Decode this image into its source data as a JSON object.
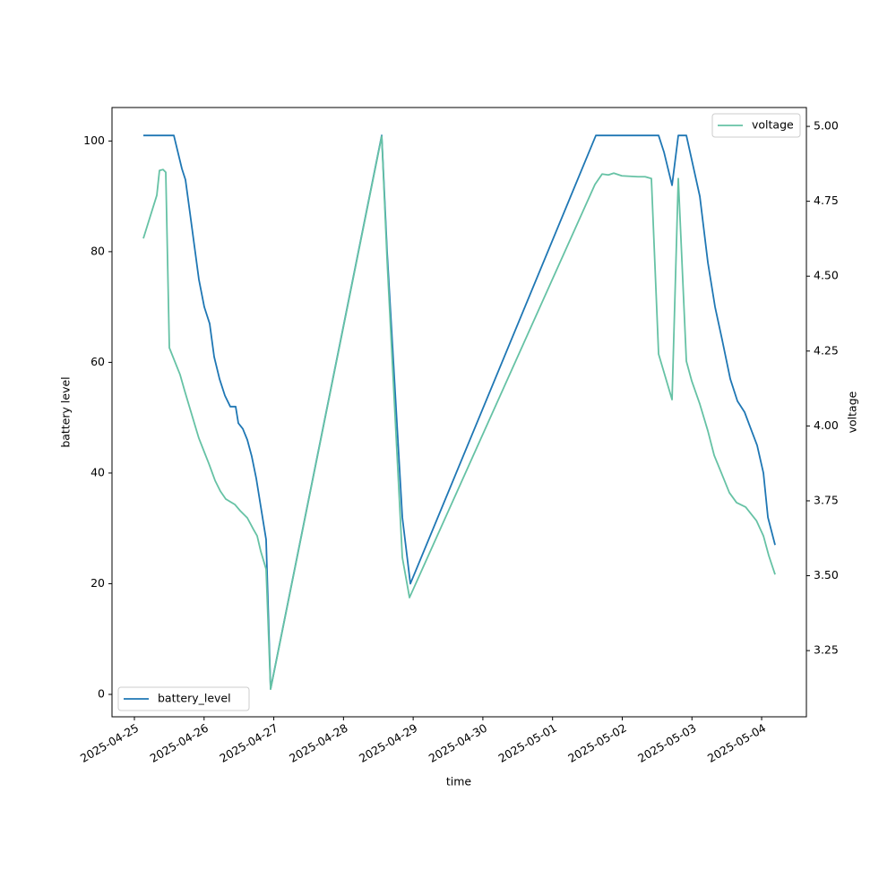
{
  "chart_data": {
    "type": "line",
    "xlabel": "time",
    "ylabel": "battery level",
    "y2label": "voltage",
    "xlim": [
      "2025-04-24 16:17",
      "2025-05-04 15:25"
    ],
    "xticks": [
      "2025-04-25",
      "2025-04-26",
      "2025-04-27",
      "2025-04-28",
      "2025-04-29",
      "2025-04-30",
      "2025-05-01",
      "2025-05-02",
      "2025-05-03",
      "2025-05-04"
    ],
    "ylim": [
      -4.05,
      106.05
    ],
    "yticks": [
      0,
      20,
      40,
      60,
      80,
      100
    ],
    "y2lim": [
      3.029,
      5.063
    ],
    "y2ticks": [
      {
        "value": 3.25,
        "label": "3.25"
      },
      {
        "value": 3.5,
        "label": "3.50"
      },
      {
        "value": 3.75,
        "label": "3.75"
      },
      {
        "value": 4,
        "label": "4.00"
      },
      {
        "value": 4.25,
        "label": "4.25"
      },
      {
        "value": 4.5,
        "label": "4.50"
      },
      {
        "value": 4.75,
        "label": "4.75"
      },
      {
        "value": 5,
        "label": "5.00"
      }
    ],
    "grid": false,
    "series": [
      {
        "name": "battery_level",
        "color": "#1f77b4",
        "axis": "y",
        "legend": "lower left",
        "x": [
          "2025-04-25 03:05",
          "2025-04-25 13:35",
          "2025-04-25 16:21",
          "2025-04-25 17:35",
          "2025-04-25 19:08",
          "2025-04-25 20:40",
          "2025-04-25 22:12",
          "2025-04-26 00:04",
          "2025-04-26 01:55",
          "2025-04-26 03:28",
          "2025-04-26 05:19",
          "2025-04-26 07:10",
          "2025-04-26 09:01",
          "2025-04-26 10:52",
          "2025-04-26 11:48",
          "2025-04-26 13:20",
          "2025-04-26 14:53",
          "2025-04-26 16:25",
          "2025-04-26 17:58",
          "2025-04-26 19:30",
          "2025-04-26 21:21",
          "2025-04-26 22:54",
          "2025-04-28 13:10",
          "2025-04-28 15:01",
          "2025-04-28 20:16",
          "2025-04-28 23:02",
          "2025-05-01 14:55",
          "2025-05-02 12:31",
          "2025-05-02 14:22",
          "2025-05-02 17:09",
          "2025-05-02 19:18",
          "2025-05-02 22:05",
          "2025-05-03 02:43",
          "2025-05-03 05:30",
          "2025-05-03 07:58",
          "2025-05-03 10:26",
          "2025-05-03 13:12",
          "2025-05-03 15:40",
          "2025-05-03 18:08",
          "2025-05-03 20:17",
          "2025-05-03 22:27",
          "2025-05-04 00:37",
          "2025-05-04 02:10",
          "2025-05-04 04:38"
        ],
        "values": [
          101,
          101,
          95,
          93,
          87,
          81,
          75,
          70,
          67,
          61,
          57,
          54,
          52,
          52,
          49,
          48,
          46,
          43,
          39,
          34,
          28,
          1,
          101,
          80,
          32,
          20,
          101,
          101,
          98,
          92,
          101,
          101,
          90,
          78,
          70,
          64,
          57,
          53,
          51,
          48,
          45,
          40,
          32,
          27
        ]
      },
      {
        "name": "voltage",
        "color": "#66c2a5",
        "axis": "y2",
        "legend": "upper right",
        "x": [
          "2025-04-25 03:05",
          "2025-04-25 07:43",
          "2025-04-25 08:38",
          "2025-04-25 09:52",
          "2025-04-25 10:48",
          "2025-04-25 12:02",
          "2025-04-25 13:53",
          "2025-04-25 15:44",
          "2025-04-25 17:17",
          "2025-04-25 19:08",
          "2025-04-25 20:59",
          "2025-04-25 22:12",
          "2025-04-26 00:23",
          "2025-04-26 01:37",
          "2025-04-26 03:46",
          "2025-04-26 05:37",
          "2025-04-26 07:28",
          "2025-04-26 10:34",
          "2025-04-26 12:25",
          "2025-04-26 14:53",
          "2025-04-26 17:02",
          "2025-04-26 18:16",
          "2025-04-26 19:30",
          "2025-04-26 21:21",
          "2025-04-26 22:54",
          "2025-04-28 13:10",
          "2025-04-28 15:01",
          "2025-04-28 20:16",
          "2025-04-28 22:44",
          "2025-05-01 14:36",
          "2025-05-01 17:04",
          "2025-05-01 19:14",
          "2025-05-01 21:05",
          "2025-05-01 23:52",
          "2025-05-02 05:25",
          "2025-05-02 07:53",
          "2025-05-02 10:02",
          "2025-05-02 12:31",
          "2025-05-02 17:09",
          "2025-05-02 19:18",
          "2025-05-02 22:05",
          "2025-05-02 23:56",
          "2025-05-03 02:43",
          "2025-05-03 05:30",
          "2025-05-03 07:39",
          "2025-05-03 10:26",
          "2025-05-03 12:54",
          "2025-05-03 15:22",
          "2025-05-03 18:30",
          "2025-05-03 22:12",
          "2025-05-04 00:37",
          "2025-05-04 02:28",
          "2025-05-04 04:38"
        ],
        "values": [
          4.626,
          4.77,
          4.853,
          4.856,
          4.847,
          4.261,
          4.216,
          4.171,
          4.118,
          4.058,
          3.998,
          3.959,
          3.905,
          3.875,
          3.818,
          3.782,
          3.756,
          3.738,
          3.717,
          3.693,
          3.654,
          3.633,
          3.582,
          3.522,
          3.121,
          4.967,
          4.554,
          3.561,
          3.427,
          4.806,
          4.841,
          4.838,
          4.844,
          4.835,
          4.832,
          4.832,
          4.826,
          4.24,
          4.088,
          4.826,
          4.216,
          4.15,
          4.073,
          3.983,
          3.902,
          3.836,
          3.777,
          3.744,
          3.729,
          3.684,
          3.633,
          3.567,
          3.504
        ]
      }
    ]
  }
}
